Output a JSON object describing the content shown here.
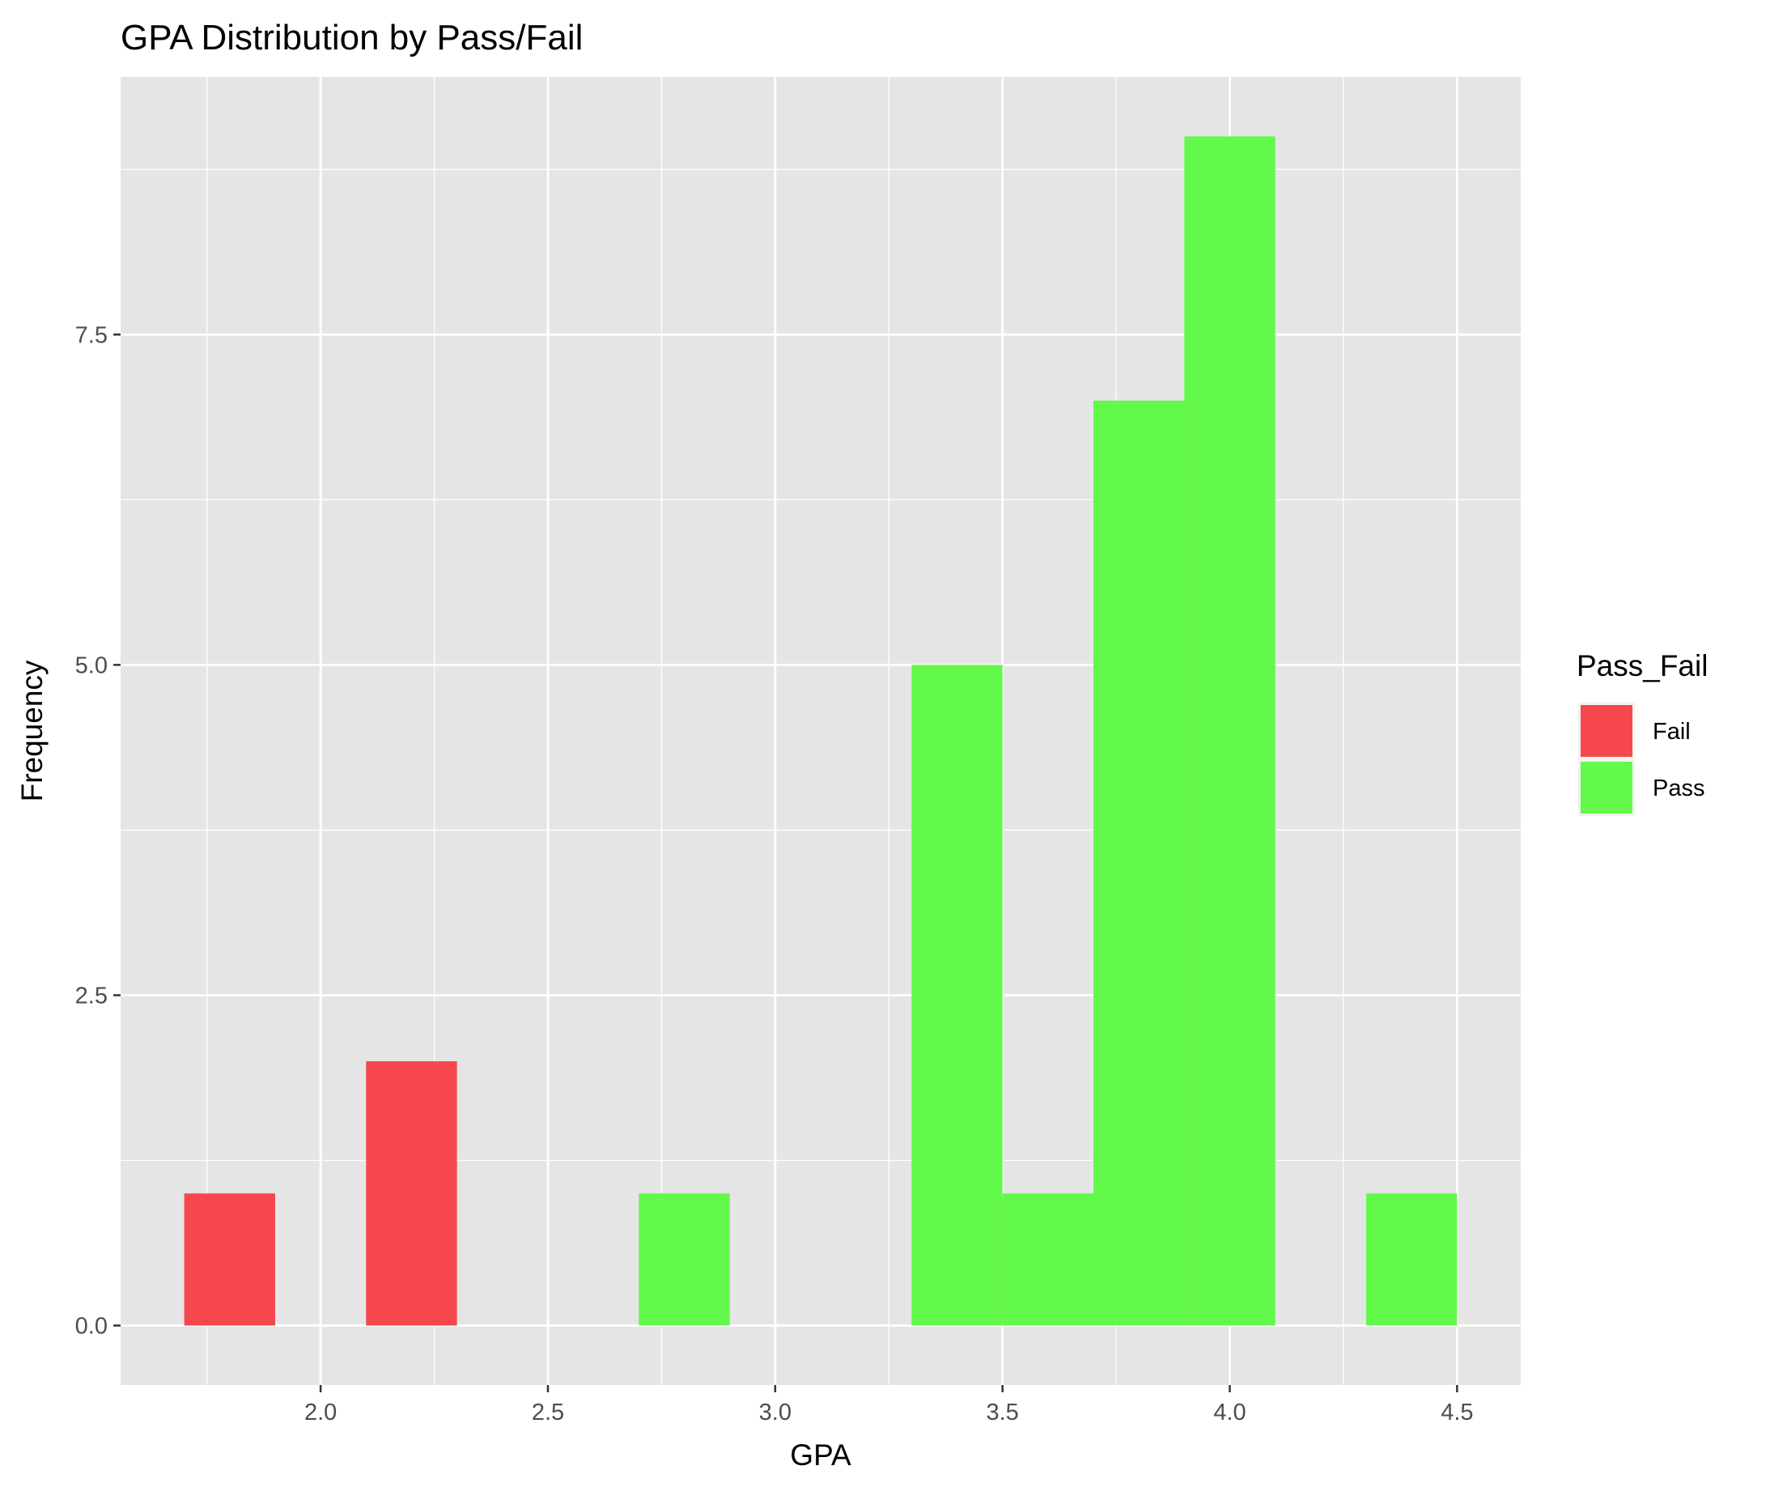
{
  "chart_data": {
    "type": "bar",
    "subtype": "histogram",
    "title": "GPA Distribution by Pass/Fail",
    "xlabel": "GPA",
    "ylabel": "Frequency",
    "xlim": [
      1.56,
      4.64
    ],
    "ylim": [
      -0.45,
      9.45
    ],
    "x_ticks": [
      2.0,
      2.5,
      3.0,
      3.5,
      4.0,
      4.5
    ],
    "x_tick_labels": [
      "2.0",
      "2.5",
      "3.0",
      "3.5",
      "4.0",
      "4.5"
    ],
    "y_ticks": [
      0,
      2.5,
      5,
      7.5
    ],
    "y_tick_labels": [
      "0.0",
      "2.5",
      "5.0",
      "7.5"
    ],
    "bin_width": 0.2,
    "legend": {
      "title": "Pass_Fail",
      "placement": "right"
    },
    "series": [
      {
        "name": "Fail",
        "color": "#f5474d",
        "bins": [
          {
            "x0": 1.7,
            "x1": 1.9,
            "count": 1
          },
          {
            "x0": 2.1,
            "x1": 2.3,
            "count": 2
          }
        ]
      },
      {
        "name": "Pass",
        "color": "#62f94a",
        "bins": [
          {
            "x0": 2.7,
            "x1": 2.9,
            "count": 1
          },
          {
            "x0": 3.3,
            "x1": 3.5,
            "count": 5
          },
          {
            "x0": 3.5,
            "x1": 3.7,
            "count": 1
          },
          {
            "x0": 3.7,
            "x1": 3.9,
            "count": 7
          },
          {
            "x0": 3.9,
            "x1": 4.1,
            "count": 9
          },
          {
            "x0": 4.3,
            "x1": 4.5,
            "count": 1
          }
        ]
      }
    ]
  }
}
